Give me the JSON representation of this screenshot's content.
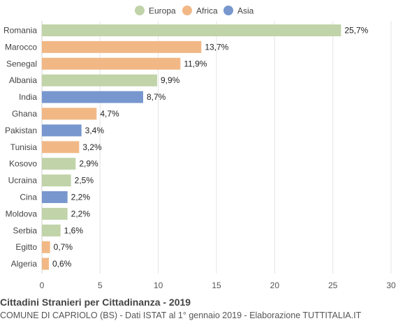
{
  "chart_data": {
    "type": "bar",
    "orientation": "horizontal",
    "title": "Cittadini Stranieri per Cittadinanza - 2019",
    "subtitle": "COMUNE DI CAPRIOLO (BS) - Dati ISTAT al 1° gennaio 2019 - Elaborazione TUTTITALIA.IT",
    "categories": [
      "Romania",
      "Marocco",
      "Senegal",
      "Albania",
      "India",
      "Ghana",
      "Pakistan",
      "Tunisia",
      "Kosovo",
      "Ucraina",
      "Cina",
      "Moldova",
      "Serbia",
      "Egitto",
      "Algeria"
    ],
    "values": [
      25.7,
      13.7,
      11.9,
      9.9,
      8.7,
      4.7,
      3.4,
      3.2,
      2.9,
      2.5,
      2.2,
      2.2,
      1.6,
      0.7,
      0.6
    ],
    "value_labels": [
      "25,7%",
      "13,7%",
      "11,9%",
      "9,9%",
      "8,7%",
      "4,7%",
      "3,4%",
      "3,2%",
      "2,9%",
      "2,5%",
      "2,2%",
      "2,2%",
      "1,6%",
      "0,7%",
      "0,6%"
    ],
    "groups": [
      "Europa",
      "Africa",
      "Africa",
      "Europa",
      "Asia",
      "Africa",
      "Asia",
      "Africa",
      "Europa",
      "Europa",
      "Asia",
      "Europa",
      "Europa",
      "Africa",
      "Africa"
    ],
    "legend": [
      {
        "name": "Europa",
        "color": "#c1d3a9"
      },
      {
        "name": "Africa",
        "color": "#f1b886"
      },
      {
        "name": "Asia",
        "color": "#7797ce"
      }
    ],
    "xlim": [
      0,
      30
    ],
    "xticks": [
      0,
      5,
      10,
      15,
      20,
      25,
      30
    ],
    "grid": true,
    "legend_position": "top-center"
  }
}
